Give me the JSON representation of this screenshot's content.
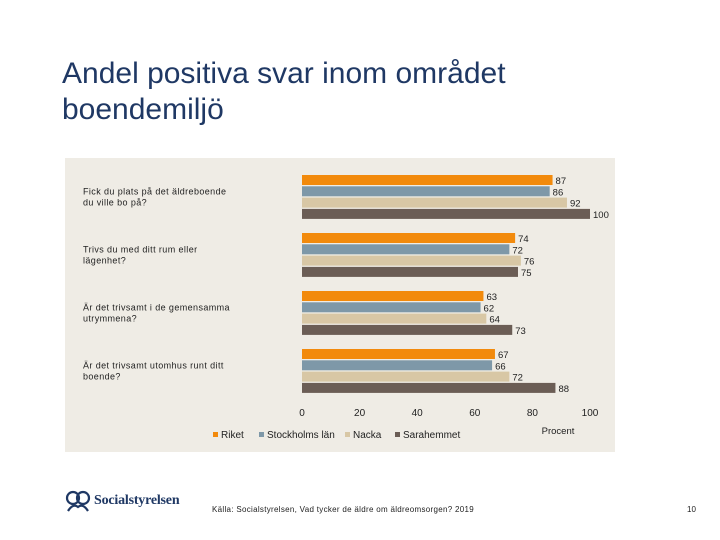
{
  "slide": {
    "title": "Andel positiva svar inom området\nboendemiljö",
    "source": "Källa: Socialstyrelsen, Vad tycker de äldre om äldreomsorgen? 2019",
    "page_number": "10",
    "logo_text": "Socialstyrelsen"
  },
  "chart_data": {
    "type": "bar",
    "orientation": "horizontal",
    "categories": [
      "Fick du plats på det äldreboende du ville bo på?",
      "Trivs du med ditt rum eller lägenhet?",
      "Är det trivsamt i de gemensamma utrymmena?",
      "Är det trivsamt utomhus runt ditt boende?"
    ],
    "series": [
      {
        "name": "Riket",
        "color": "#f28a0c",
        "values": [
          87,
          74,
          63,
          67
        ]
      },
      {
        "name": "Stockholms län",
        "color": "#7e98a8",
        "values": [
          86,
          72,
          62,
          66
        ]
      },
      {
        "name": "Nacka",
        "color": "#d8c7a5",
        "values": [
          92,
          76,
          64,
          72
        ]
      },
      {
        "name": "Sarahemmet",
        "color": "#6b5d55",
        "values": [
          100,
          75,
          73,
          88
        ]
      }
    ],
    "xlim": [
      0,
      100
    ],
    "xticks": [
      0,
      20,
      40,
      60,
      80,
      100
    ],
    "xlabel": "Procent",
    "legend_position": "bottom"
  }
}
